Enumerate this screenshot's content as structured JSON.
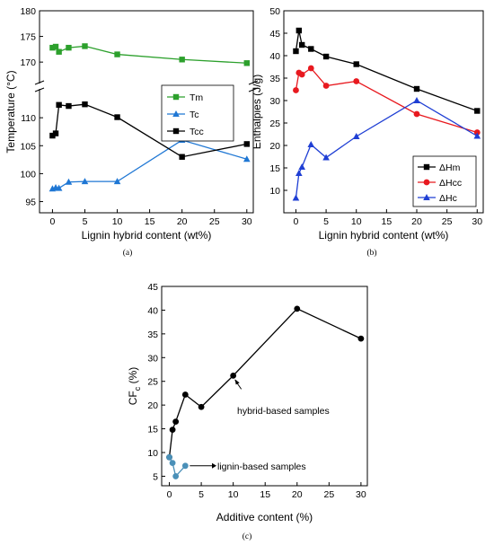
{
  "chart_data": [
    {
      "type": "line",
      "panel_label": "(a)",
      "xlabel": "Lignin hybrid content (wt%)",
      "ylabel": "Temperature (°C)",
      "x_ticks": [
        0,
        5,
        10,
        15,
        20,
        25,
        30
      ],
      "xlim": [
        -2,
        31
      ],
      "broken_y_axis": true,
      "upper_ylim": [
        166,
        180
      ],
      "upper_y_ticks": [
        170,
        175,
        180
      ],
      "lower_ylim": [
        93,
        115
      ],
      "lower_y_ticks": [
        95,
        100,
        105,
        110
      ],
      "legend_position": "right",
      "series": [
        {
          "name": "Tm",
          "color": "#2ca02c",
          "marker": "square",
          "segment": "upper",
          "x": [
            0,
            0.5,
            1,
            2.5,
            5,
            10,
            20,
            30
          ],
          "y": [
            172.8,
            173.0,
            172.0,
            172.8,
            173.1,
            171.5,
            170.5,
            169.8
          ]
        },
        {
          "name": "Tc",
          "color": "#1f77d4",
          "marker": "triangle",
          "segment": "lower",
          "x": [
            0,
            0.5,
            1,
            2.5,
            5,
            10,
            20,
            30
          ],
          "y": [
            97.3,
            97.5,
            97.4,
            98.5,
            98.6,
            98.6,
            106.0,
            102.6
          ]
        },
        {
          "name": "Tcc",
          "color": "#000000",
          "marker": "square",
          "segment": "lower",
          "x": [
            0,
            0.5,
            1,
            2.5,
            5,
            10,
            20,
            30
          ],
          "y": [
            106.8,
            107.2,
            112.3,
            112.1,
            112.4,
            110.1,
            103.0,
            105.3
          ]
        }
      ]
    },
    {
      "type": "line",
      "panel_label": "(b)",
      "xlabel": "Lignin hybrid content (wt%)",
      "ylabel": "Enthalpies (J/g)",
      "x_ticks": [
        0,
        5,
        10,
        15,
        20,
        25,
        30
      ],
      "xlim": [
        -2,
        31
      ],
      "ylim": [
        5,
        50
      ],
      "y_ticks": [
        10,
        15,
        20,
        25,
        30,
        35,
        40,
        45,
        50
      ],
      "legend_position": "bottom-right",
      "series": [
        {
          "name": "ΔHm",
          "color": "#000000",
          "marker": "square",
          "x": [
            0,
            0.5,
            1,
            2.5,
            5,
            10,
            20,
            30
          ],
          "y": [
            41.0,
            45.6,
            42.4,
            41.5,
            39.8,
            38.1,
            32.6,
            27.7
          ]
        },
        {
          "name": "ΔHcc",
          "color": "#e8191f",
          "marker": "circle",
          "x": [
            0,
            0.5,
            1,
            2.5,
            5,
            10,
            20,
            30
          ],
          "y": [
            32.3,
            36.2,
            35.8,
            37.2,
            33.3,
            34.3,
            27.0,
            22.9
          ]
        },
        {
          "name": "ΔHc",
          "color": "#1f3fd4",
          "marker": "triangle",
          "x": [
            0,
            0.5,
            1,
            2.5,
            5,
            10,
            20,
            30
          ],
          "y": [
            8.3,
            13.8,
            15.2,
            20.2,
            17.3,
            22.0,
            30.0,
            22.1
          ]
        }
      ]
    },
    {
      "type": "line",
      "panel_label": "(c)",
      "xlabel": "Additive content (%)",
      "ylabel": "CF",
      "ylabel_sub": "c",
      "ylabel_unit": " (%)",
      "x_ticks": [
        0,
        5,
        10,
        15,
        20,
        25,
        30
      ],
      "xlim": [
        -1.2,
        31
      ],
      "ylim": [
        3,
        45
      ],
      "y_ticks": [
        5,
        10,
        15,
        20,
        25,
        30,
        35,
        40,
        45
      ],
      "series": [
        {
          "label": "hybrid-based samples",
          "color": "#000000",
          "marker": "circle",
          "x": [
            0,
            0.5,
            1,
            2.5,
            5,
            10,
            20,
            30
          ],
          "y": [
            9.0,
            14.8,
            16.5,
            22.2,
            19.6,
            26.2,
            40.3,
            34.0
          ]
        },
        {
          "label": "lignin-based samples",
          "color": "#4a90b8",
          "marker": "circle",
          "x": [
            0,
            0.5,
            1,
            2.5
          ],
          "y": [
            9.0,
            7.8,
            5.0,
            7.2
          ]
        }
      ]
    }
  ]
}
